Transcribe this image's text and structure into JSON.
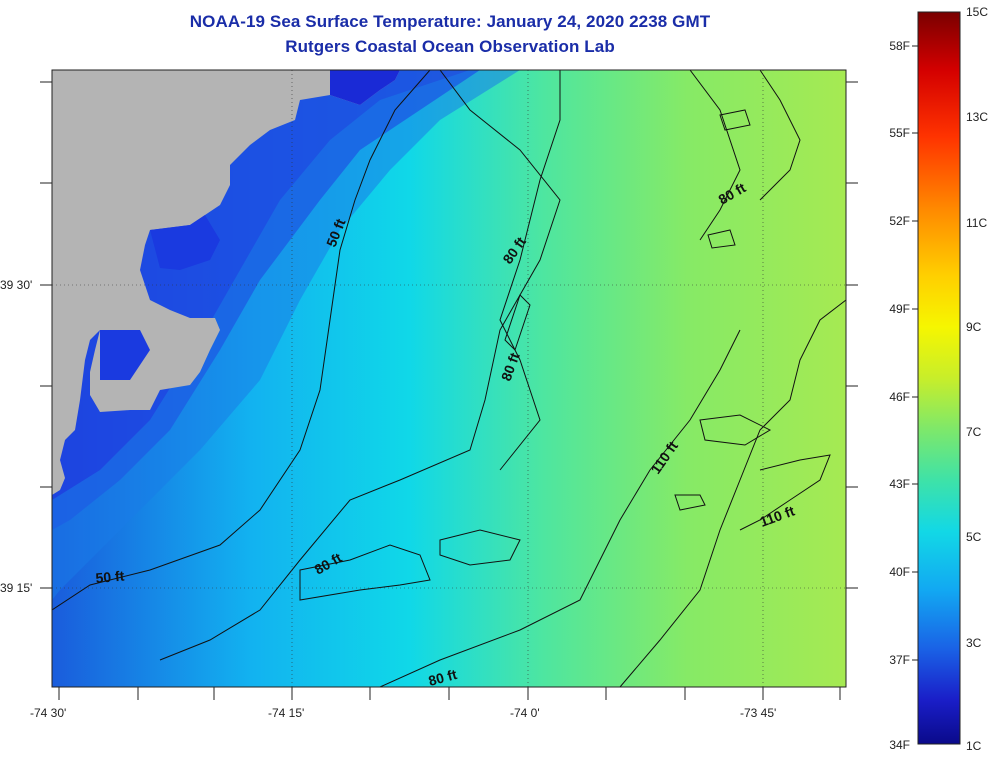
{
  "title_line1": "NOAA-19 Sea Surface Temperature:  January 24, 2020 2238 GMT",
  "title_line2": "Rutgers Coastal Ocean Observation Lab",
  "lat_labels": [
    "39 30'",
    "39 15'"
  ],
  "lon_labels": [
    "-74 30'",
    "-74 15'",
    "-74 0'",
    "-73 45'"
  ],
  "depth_labels": [
    "50 ft",
    "80 ft",
    "80 ft",
    "80 ft",
    "50 ft",
    "80 ft",
    "80 ft",
    "110 ft",
    "110 ft"
  ],
  "colorbar": {
    "fahrenheit_labels": [
      "58F",
      "55F",
      "52F",
      "49F",
      "46F",
      "43F",
      "40F",
      "37F",
      "34F"
    ],
    "celsius_labels": [
      "15C",
      "13C",
      "11C",
      "9C",
      "7C",
      "5C",
      "3C",
      "1C"
    ],
    "colors": [
      "#7a0000",
      "#d40000",
      "#ff3300",
      "#ff8a00",
      "#ffcf00",
      "#f6f600",
      "#c8ee2a",
      "#7ee86a",
      "#3ee2a8",
      "#12d8e6",
      "#12a8f2",
      "#1a62e6",
      "#1a1ec8",
      "#0a0a8a"
    ]
  },
  "land_color": "#b4b4b4",
  "title_color": "#1a2da8"
}
